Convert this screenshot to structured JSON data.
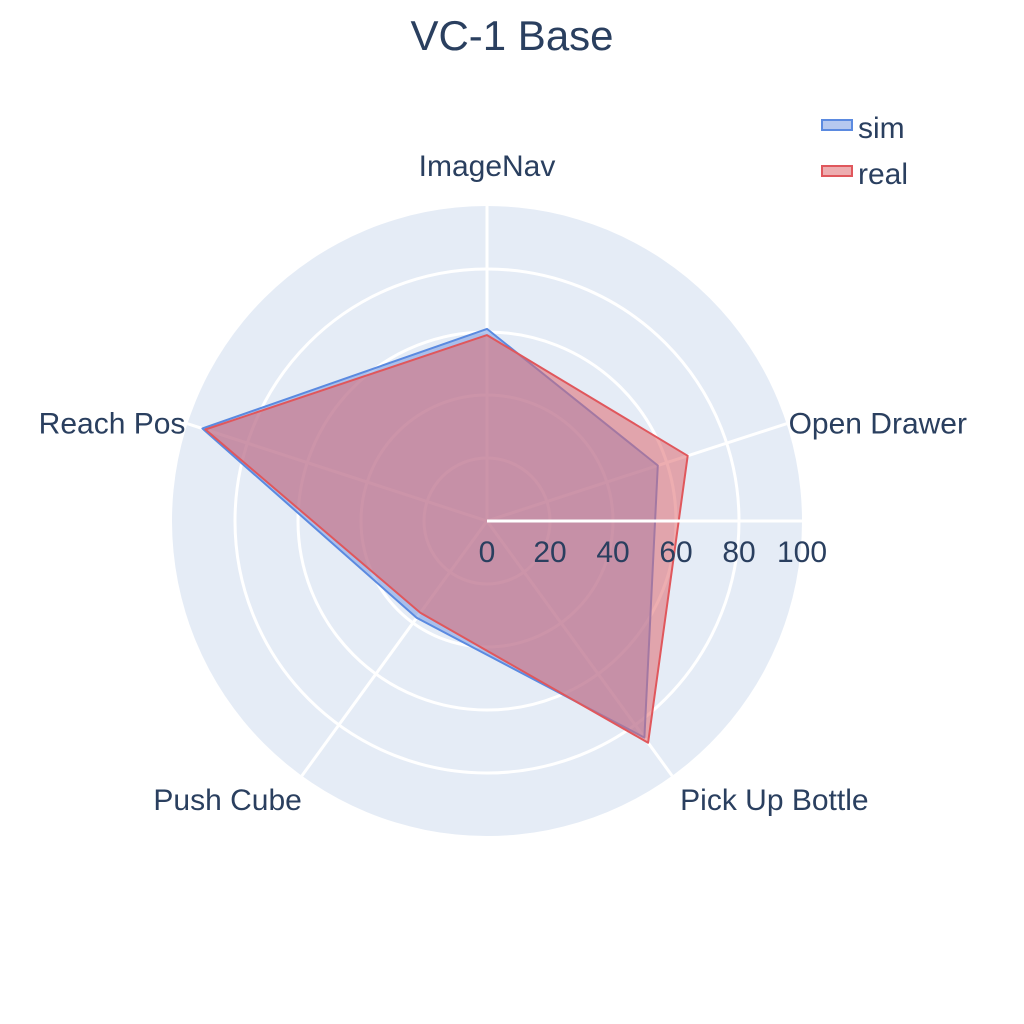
{
  "chart_data": {
    "type": "radar",
    "title": "VC-1 Base",
    "categories": [
      "ImageNav",
      "Open Drawer",
      "Pick Up Bottle",
      "Push Cube",
      "Reach Pos"
    ],
    "radial_ticks": [
      "0",
      "20",
      "40",
      "60",
      "80",
      "100"
    ],
    "rlim": [
      0,
      100
    ],
    "legend_position": "top-right",
    "series": [
      {
        "name": "sim",
        "values": [
          61,
          57,
          85,
          38,
          95
        ],
        "color": "#5b8ae0",
        "fill": "rgba(120,155,225,0.55)"
      },
      {
        "name": "real",
        "values": [
          59,
          67,
          87,
          36,
          94
        ],
        "color": "#e0575c",
        "fill": "rgba(222,106,112,0.55)"
      }
    ],
    "colors": {
      "background": "#e5ecf6",
      "grid": "#ffffff",
      "text": "#2a3f5f"
    }
  }
}
